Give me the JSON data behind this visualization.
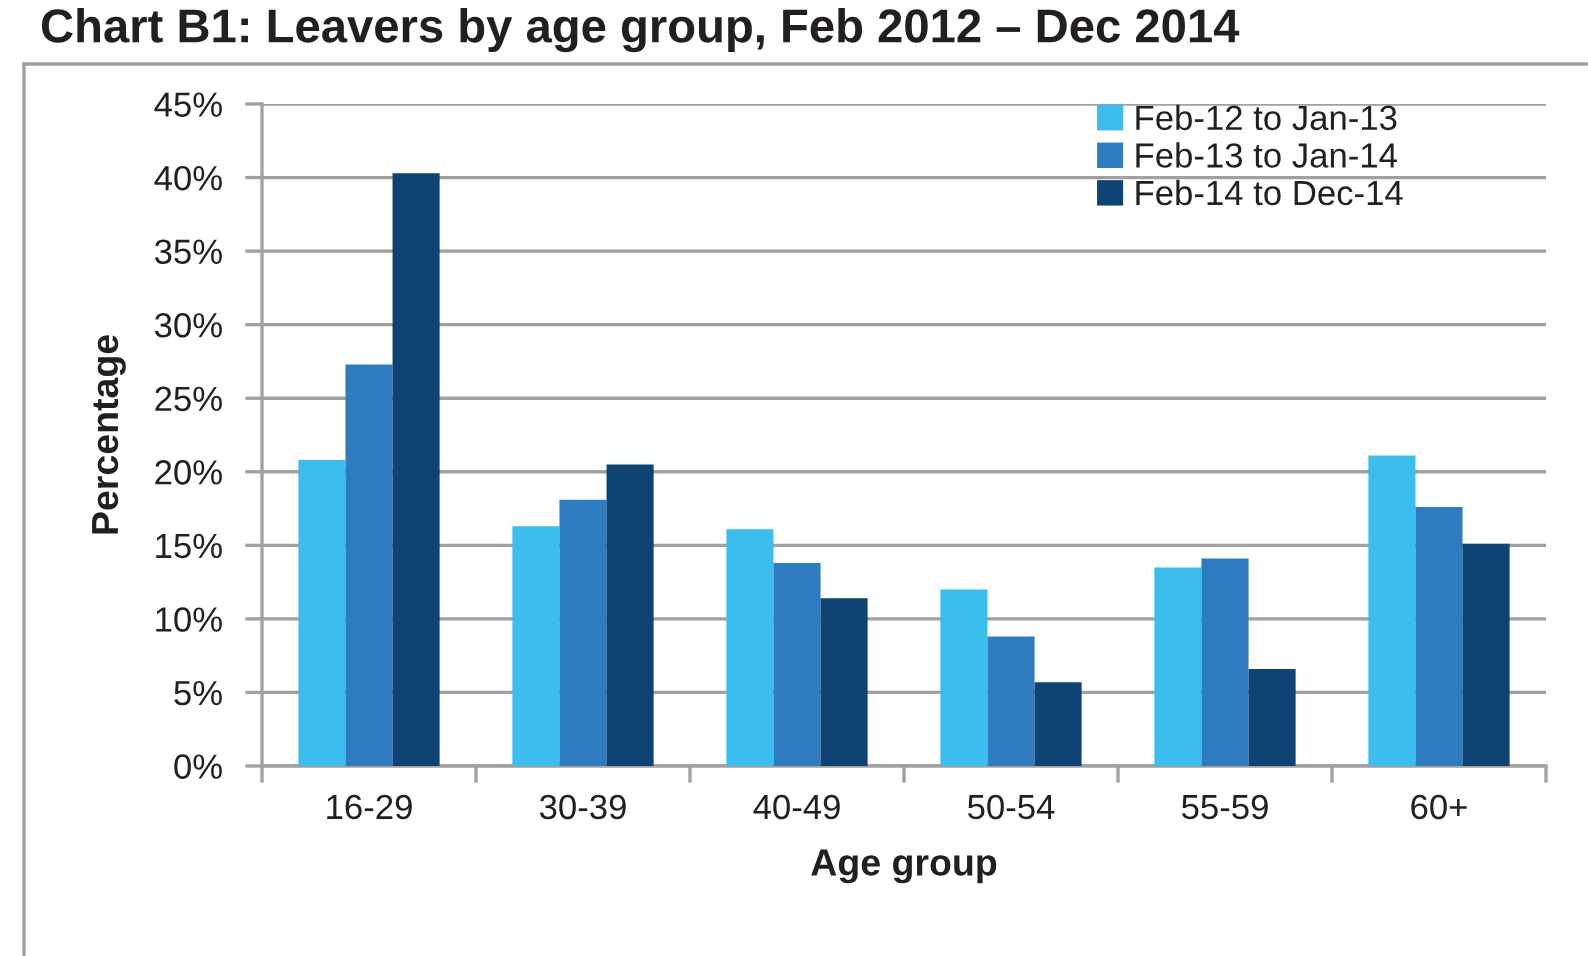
{
  "chart_data": {
    "type": "bar",
    "title": "Chart B1: Leavers by age group, Feb 2012 – Dec 2014",
    "xlabel": "Age group",
    "ylabel": "Percentage",
    "categories": [
      "16-29",
      "30-39",
      "40-49",
      "50-54",
      "55-59",
      "60+"
    ],
    "series": [
      {
        "name": "Feb-12 to Jan-13",
        "color": "#3bbeed",
        "values": [
          20.8,
          16.3,
          16.1,
          12.0,
          13.5,
          21.1
        ]
      },
      {
        "name": "Feb-13 to Jan-14",
        "color": "#2e7bc0",
        "values": [
          27.3,
          18.1,
          13.8,
          8.8,
          14.1,
          17.6
        ]
      },
      {
        "name": "Feb-14 to Dec-14",
        "color": "#0f4373",
        "values": [
          40.3,
          20.5,
          11.4,
          5.7,
          6.6,
          15.1
        ]
      }
    ],
    "ylim": [
      0,
      45
    ],
    "yticks": [
      {
        "value": 0,
        "label": "0%"
      },
      {
        "value": 5,
        "label": "5%"
      },
      {
        "value": 10,
        "label": "10%"
      },
      {
        "value": 15,
        "label": "15%"
      },
      {
        "value": 20,
        "label": "20%"
      },
      {
        "value": 25,
        "label": "25%"
      },
      {
        "value": 30,
        "label": "30%"
      },
      {
        "value": 35,
        "label": "35%"
      },
      {
        "value": 40,
        "label": "40%"
      },
      {
        "value": 45,
        "label": "45%"
      }
    ],
    "grid": "y",
    "legend": "top right"
  }
}
